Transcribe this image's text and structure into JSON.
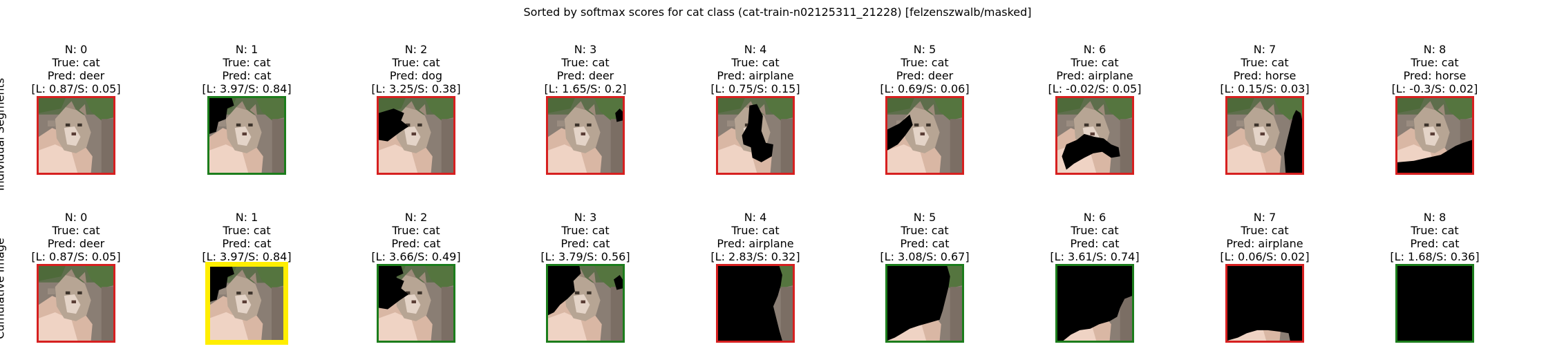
{
  "title": "Sorted by softmax scores for cat class (cat-train-n02125311_21228) [felzenszwalb/masked]",
  "row_labels": [
    "Individual Segments",
    "Cumulative Image"
  ],
  "colors": {
    "correct": "#1c7d1c",
    "wrong": "#d62020",
    "best": "#ffee00",
    "mask": "#000000"
  },
  "rows": [
    {
      "name": "individual",
      "panels": [
        {
          "n": "N: 0",
          "true_label": "True: cat",
          "pred": "Pred: deer",
          "scores": "[L: 0.87/S: 0.05]",
          "status": "wrong",
          "mask": "none"
        },
        {
          "n": "N: 1",
          "true_label": "True: cat",
          "pred": "Pred: cat",
          "scores": "[L: 3.97/S: 0.84]",
          "status": "correct",
          "mask": "top-left"
        },
        {
          "n": "N: 2",
          "true_label": "True: cat",
          "pred": "Pred: dog",
          "scores": "[L: 3.25/S: 0.38]",
          "status": "wrong",
          "mask": "left-mid"
        },
        {
          "n": "N: 3",
          "true_label": "True: cat",
          "pred": "Pred: deer",
          "scores": "[L: 1.65/S: 0.2]",
          "status": "wrong",
          "mask": "right-top-small"
        },
        {
          "n": "N: 4",
          "true_label": "True: cat",
          "pred": "Pred: airplane",
          "scores": "[L: 0.75/S: 0.15]",
          "status": "wrong",
          "mask": "center"
        },
        {
          "n": "N: 5",
          "true_label": "True: cat",
          "pred": "Pred: deer",
          "scores": "[L: 0.69/S: 0.06]",
          "status": "wrong",
          "mask": "left-wedge"
        },
        {
          "n": "N: 6",
          "true_label": "True: cat",
          "pred": "Pred: airplane",
          "scores": "[L: -0.02/S: 0.05]",
          "status": "wrong",
          "mask": "lower-band"
        },
        {
          "n": "N: 7",
          "true_label": "True: cat",
          "pred": "Pred: horse",
          "scores": "[L: 0.15/S: 0.03]",
          "status": "wrong",
          "mask": "right-strip"
        },
        {
          "n": "N: 8",
          "true_label": "True: cat",
          "pred": "Pred: horse",
          "scores": "[L: -0.3/S: 0.02]",
          "status": "wrong",
          "mask": "bottom-right"
        }
      ]
    },
    {
      "name": "cumulative",
      "panels": [
        {
          "n": "N: 0",
          "true_label": "True: cat",
          "pred": "Pred: deer",
          "scores": "[L: 0.87/S: 0.05]",
          "status": "wrong",
          "mask": "none"
        },
        {
          "n": "N: 1",
          "true_label": "True: cat",
          "pred": "Pred: cat",
          "scores": "[L: 3.97/S: 0.84]",
          "status": "best",
          "mask": "top-left"
        },
        {
          "n": "N: 2",
          "true_label": "True: cat",
          "pred": "Pred: cat",
          "scores": "[L: 3.66/S: 0.49]",
          "status": "correct",
          "mask": "cum2"
        },
        {
          "n": "N: 3",
          "true_label": "True: cat",
          "pred": "Pred: cat",
          "scores": "[L: 3.79/S: 0.56]",
          "status": "correct",
          "mask": "cum3"
        },
        {
          "n": "N: 4",
          "true_label": "True: cat",
          "pred": "Pred: airplane",
          "scores": "[L: 2.83/S: 0.32]",
          "status": "wrong",
          "mask": "cum4"
        },
        {
          "n": "N: 5",
          "true_label": "True: cat",
          "pred": "Pred: cat",
          "scores": "[L: 3.08/S: 0.67]",
          "status": "correct",
          "mask": "cum5"
        },
        {
          "n": "N: 6",
          "true_label": "True: cat",
          "pred": "Pred: cat",
          "scores": "[L: 3.61/S: 0.74]",
          "status": "correct",
          "mask": "cum6"
        },
        {
          "n": "N: 7",
          "true_label": "True: cat",
          "pred": "Pred: airplane",
          "scores": "[L: 0.06/S: 0.02]",
          "status": "wrong",
          "mask": "cum7"
        },
        {
          "n": "N: 8",
          "true_label": "True: cat",
          "pred": "Pred: cat",
          "scores": "[L: 1.68/S: 0.36]",
          "status": "correct",
          "mask": "full"
        }
      ]
    }
  ]
}
